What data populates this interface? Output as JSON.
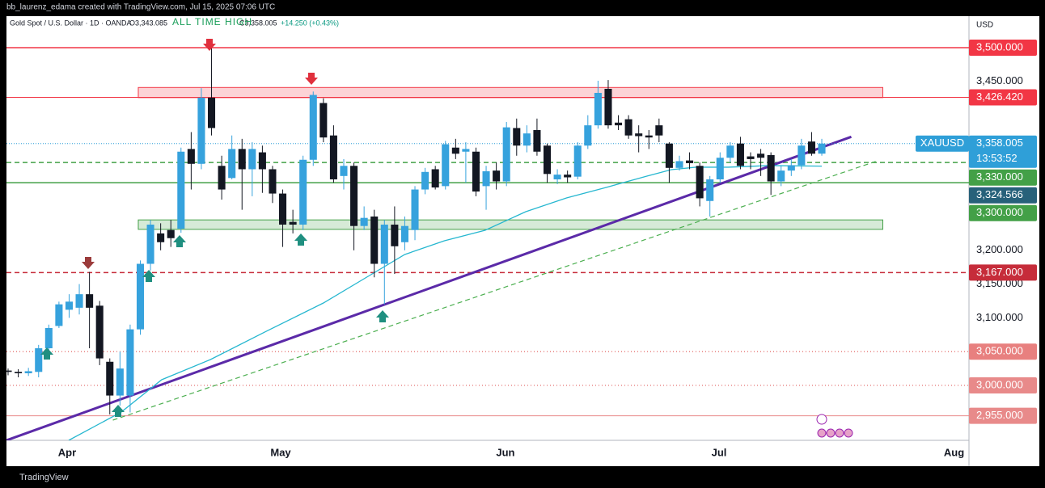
{
  "header": "bb_laurenz_edama created with TradingView.com, Jul 15, 2025 07:06 UTC",
  "footer": "TradingView",
  "chart_data": {
    "type": "candlestick",
    "legend": {
      "symbol": "Gold Spot / U.S. Dollar · 1D · OANDA",
      "open": "O3,343.085",
      "close": "C3,358.005",
      "change": "+14.250 (+0.43%)"
    },
    "annotation": "ALL TIME HIGH",
    "currency": "USD",
    "up_color": "#36a2dd",
    "down_color": "#131722",
    "xlim": [
      -0.16,
      94.47
    ],
    "xticks": [
      {
        "value": 5.8,
        "label": "Apr"
      },
      {
        "value": 26.8,
        "label": "May"
      },
      {
        "value": 48.9,
        "label": "Jun"
      },
      {
        "value": 69.9,
        "label": "Jul"
      },
      {
        "value": 93,
        "label": "Aug"
      }
    ],
    "ylim": [
      2918.7,
      3546.6
    ],
    "yticks": [
      {
        "value": 3100,
        "label": "3,100.000"
      },
      {
        "value": 3150,
        "label": "3,150.000"
      },
      {
        "value": 3200,
        "label": "3,200.000"
      },
      {
        "value": 3450,
        "label": "3,450.000"
      }
    ],
    "open": [
      3022,
      3020,
      3018,
      3020,
      3055,
      3088,
      3112,
      3115,
      3135,
      3118,
      3035,
      2985,
      2985,
      3083,
      3180,
      3225,
      3230,
      3232,
      3350,
      3328,
      3426,
      3325,
      3307,
      3350,
      3320,
      3345,
      3320,
      3284,
      3242,
      3238,
      3334,
      3418,
      3370,
      3310,
      3325,
      3236,
      3250,
      3180,
      3238,
      3212,
      3230,
      3290,
      3320,
      3295,
      3352,
      3346,
      3346,
      3295,
      3318,
      3302,
      3381,
      3355,
      3378,
      3355,
      3305,
      3312,
      3309,
      3355,
      3385,
      3439,
      3389,
      3394,
      3373,
      3370,
      3385,
      3358,
      3322,
      3333,
      3325,
      3273,
      3305,
      3337,
      3358,
      3339,
      3343,
      3341,
      3302,
      3318,
      3326,
      3361,
      3343.085
    ],
    "high": [
      3025,
      3024,
      3026,
      3060,
      3090,
      3124,
      3135,
      3150,
      3168,
      3125,
      3040,
      3050,
      3090,
      3185,
      3245,
      3240,
      3245,
      3352,
      3375,
      3440,
      3500,
      3340,
      3370,
      3365,
      3360,
      3355,
      3325,
      3290,
      3260,
      3340,
      3435,
      3425,
      3385,
      3335,
      3330,
      3265,
      3260,
      3245,
      3265,
      3250,
      3295,
      3322,
      3325,
      3362,
      3365,
      3360,
      3352,
      3325,
      3330,
      3390,
      3395,
      3385,
      3395,
      3358,
      3320,
      3318,
      3360,
      3400,
      3451,
      3452,
      3400,
      3400,
      3385,
      3378,
      3395,
      3360,
      3340,
      3345,
      3330,
      3310,
      3345,
      3360,
      3368,
      3345,
      3350,
      3345,
      3325,
      3335,
      3365,
      3375,
      3365
    ],
    "low": [
      3015,
      3012,
      3014,
      3012,
      3040,
      3085,
      3100,
      3105,
      3055,
      3030,
      2957,
      2970,
      2960,
      3075,
      3170,
      3200,
      3205,
      3226,
      3290,
      3320,
      3370,
      3275,
      3305,
      3260,
      3280,
      3285,
      3270,
      3205,
      3225,
      3230,
      3325,
      3360,
      3300,
      3290,
      3200,
      3230,
      3160,
      3120,
      3165,
      3200,
      3215,
      3283,
      3290,
      3290,
      3335,
      3300,
      3280,
      3260,
      3290,
      3295,
      3340,
      3345,
      3340,
      3300,
      3298,
      3300,
      3305,
      3350,
      3380,
      3380,
      3378,
      3365,
      3345,
      3350,
      3360,
      3300,
      3318,
      3320,
      3265,
      3250,
      3300,
      3330,
      3320,
      3320,
      3310,
      3282,
      3295,
      3310,
      3320,
      3340,
      3340
    ],
    "close": [
      3020,
      3018,
      3021,
      3055,
      3085,
      3120,
      3124,
      3135,
      3115,
      3040,
      2985,
      3025,
      3083,
      3180,
      3238,
      3212,
      3218,
      3346,
      3328,
      3426,
      3381,
      3290,
      3350,
      3320,
      3350,
      3320,
      3284,
      3238,
      3238,
      3334,
      3430,
      3367,
      3305,
      3325,
      3236,
      3248,
      3180,
      3238,
      3206,
      3236,
      3290,
      3316,
      3293,
      3357,
      3343,
      3350,
      3287,
      3317,
      3302,
      3382,
      3355,
      3373,
      3346,
      3313,
      3312,
      3308,
      3355,
      3385,
      3433,
      3385,
      3385,
      3370,
      3369,
      3367,
      3370,
      3322,
      3332,
      3329,
      3277,
      3305,
      3337,
      3355,
      3325,
      3335,
      3337,
      3302,
      3318,
      3326,
      3355,
      3343,
      3358.005
    ],
    "moving_average": {
      "color": "#26b7d0",
      "x": [
        5.96,
        11.13,
        15.1,
        19.9,
        25.4,
        31.0,
        35.0,
        39.0,
        42.9,
        46.9,
        50.9,
        54.9,
        58.8,
        62.8,
        65.2,
        67.6,
        70.8,
        74.8,
        80
      ],
      "values": [
        2918.7,
        2960.6,
        3008.4,
        3038.3,
        3080.2,
        3122.0,
        3157.9,
        3193.8,
        3214.1,
        3229.7,
        3257.2,
        3277.5,
        3293.1,
        3309.8,
        3319.4,
        3323.0,
        3323.0,
        3325.4,
        3324.566
      ],
      "label": {
        "value": 3324.566,
        "label": "3,324.566",
        "color": "#27617a"
      }
    },
    "trendlines": [
      {
        "color": "#5b2aa8",
        "style": "solid",
        "x": [
          -0.16,
          82.9
        ],
        "y": [
          2918.7,
          3368
        ]
      },
      {
        "color": "#4caf50",
        "style": "dashed",
        "x": [
          10.3,
          85.5
        ],
        "y": [
          2948.6,
          3332.6
        ]
      }
    ],
    "zones": [
      {
        "from": 3426,
        "to": 3441,
        "x": [
          12.8,
          86.0
        ],
        "color": "#f23645"
      },
      {
        "from": 3231,
        "to": 3245,
        "x": [
          12.8,
          86.0
        ],
        "color": "#43a047"
      }
    ],
    "levels": [
      {
        "value": 3500,
        "label": "3,500.000",
        "color": "#f23645",
        "style": "solid"
      },
      {
        "value": 3426.42,
        "label": "3,426.420",
        "color": "#f23645",
        "style": "thin"
      },
      {
        "value": 3330,
        "label": "3,330.000",
        "color": "#43a047",
        "style": "dashed"
      },
      {
        "value": 3300,
        "label": "3,300.000",
        "color": "#43a047",
        "style": "solid"
      },
      {
        "value": 3167,
        "label": "3,167.000",
        "color": "#c62c3a",
        "style": "dashed"
      },
      {
        "value": 3050,
        "label": "3,050.000",
        "color": "#e8807f",
        "style": "dotted"
      },
      {
        "value": 3000,
        "label": "3,000.000",
        "color": "#e88a8a",
        "style": "dotted"
      },
      {
        "value": 2955,
        "label": "2,955.000",
        "color": "#e88a8a",
        "style": "thin"
      }
    ],
    "last": {
      "value": 3358.005,
      "label": "3,358.005",
      "symbol": "XAUUSD",
      "countdown": "13:53:52",
      "color": "#2f9fd8"
    }
  }
}
